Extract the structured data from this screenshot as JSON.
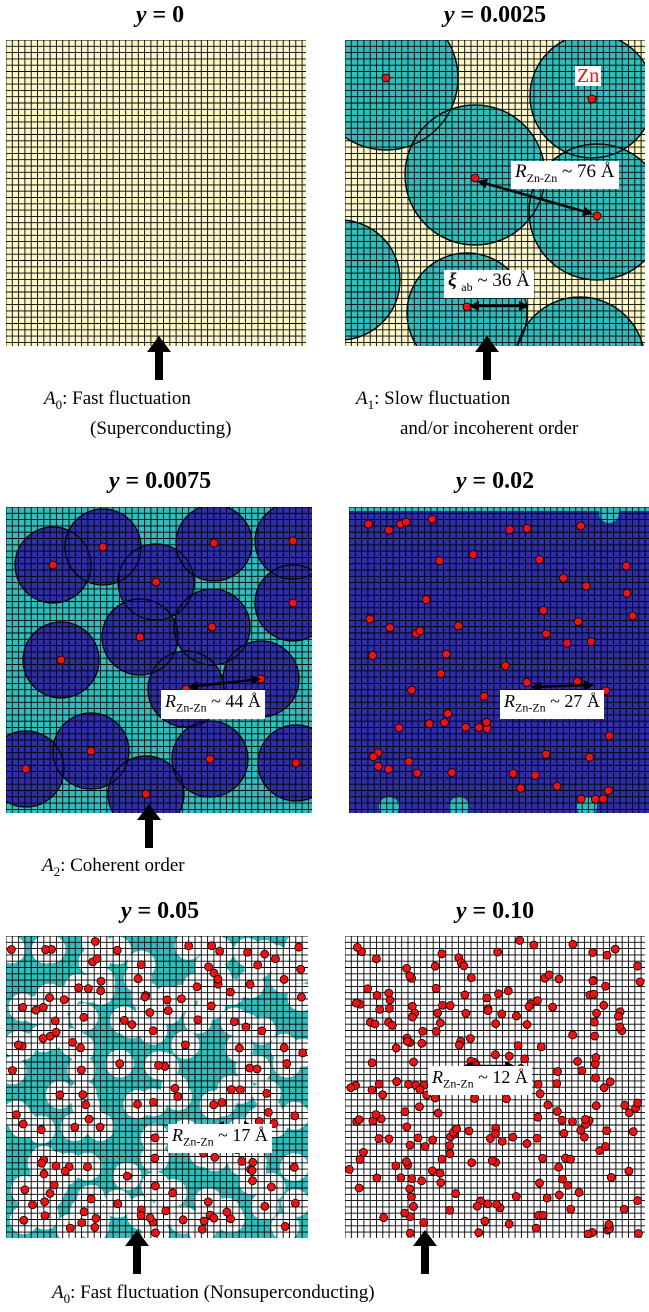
{
  "panels": [
    {
      "id": "p1",
      "title": {
        "var": "y",
        "eq": "=",
        "val": "0"
      }
    },
    {
      "id": "p2",
      "title": {
        "var": "y",
        "eq": "=",
        "val": "0.0025"
      }
    },
    {
      "id": "p3",
      "title": {
        "var": "y",
        "eq": "=",
        "val": "0.0075"
      }
    },
    {
      "id": "p4",
      "title": {
        "var": "y",
        "eq": "=",
        "val": "0.02"
      }
    },
    {
      "id": "p5",
      "title": {
        "var": "y",
        "eq": "=",
        "val": "0.05"
      }
    },
    {
      "id": "p6",
      "title": {
        "var": "y",
        "eq": "=",
        "val": "0.10"
      }
    }
  ],
  "annotations": {
    "zn_label": "Zn",
    "p2_r": {
      "sym": "R",
      "sub": "Zn-Zn",
      "text": " ~ 76 Å"
    },
    "p2_xi": {
      "sym": "ξ",
      "sub": "ab",
      "text": " ~ 36 Å"
    },
    "p3_r": {
      "sym": "R",
      "sub": "Zn-Zn",
      "text": " ~ 44 Å"
    },
    "p4_r": {
      "sym": "R",
      "sub": "Zn-Zn",
      "text": " ~ 27 Å"
    },
    "p5_r": {
      "sym": "R",
      "sub": "Zn-Zn",
      "text": " ~ 17 Å"
    },
    "p6_r": {
      "sym": "R",
      "sub": "Zn-Zn",
      "text": " ~ 12 Å"
    }
  },
  "captions": {
    "row1_left": {
      "sym": "A",
      "sub": "0",
      "line1": ": Fast fluctuation",
      "line2": "(Superconducting)"
    },
    "row1_right": {
      "sym": "A",
      "sub": "1",
      "line1": ": Slow fluctuation",
      "line2": "and/or incoherent order"
    },
    "row2_left": {
      "sym": "A",
      "sub": "2",
      "line1": ": Coherent order"
    },
    "row3": {
      "sym": "A",
      "sub": "0",
      "line1": ": Fast fluctuation (Nonsuperconducting)"
    }
  },
  "colors": {
    "background_light": "#fbf7c6",
    "teal": "#33bcbc",
    "dark_blue": "#2e2ea8",
    "zn_dot": "#ee1111",
    "grid": "#000000",
    "white": "#ffffff"
  }
}
